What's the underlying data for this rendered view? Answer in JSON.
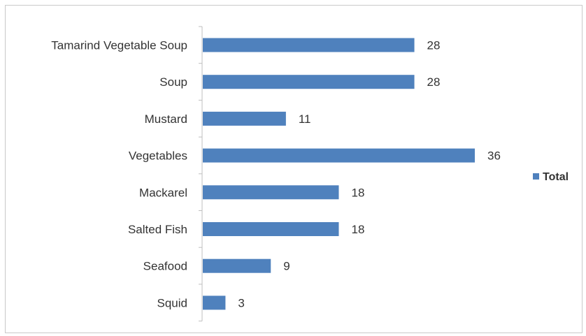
{
  "chart_data": {
    "type": "bar",
    "orientation": "horizontal",
    "categories": [
      "Tamarind Vegetable Soup",
      "Soup",
      "Mustard",
      "Vegetables",
      "Mackarel",
      "Salted Fish",
      "Seafood",
      "Squid"
    ],
    "series": [
      {
        "name": "Total",
        "values": [
          28,
          28,
          11,
          36,
          18,
          18,
          9,
          3
        ],
        "color": "#4f81bd"
      }
    ],
    "data_labels": [
      "28",
      "28",
      "11",
      "36",
      "18",
      "18",
      "9",
      "3"
    ],
    "legend": {
      "position": "right",
      "entries": [
        "Total"
      ]
    },
    "xlim": [
      0,
      36
    ],
    "grid": false
  }
}
